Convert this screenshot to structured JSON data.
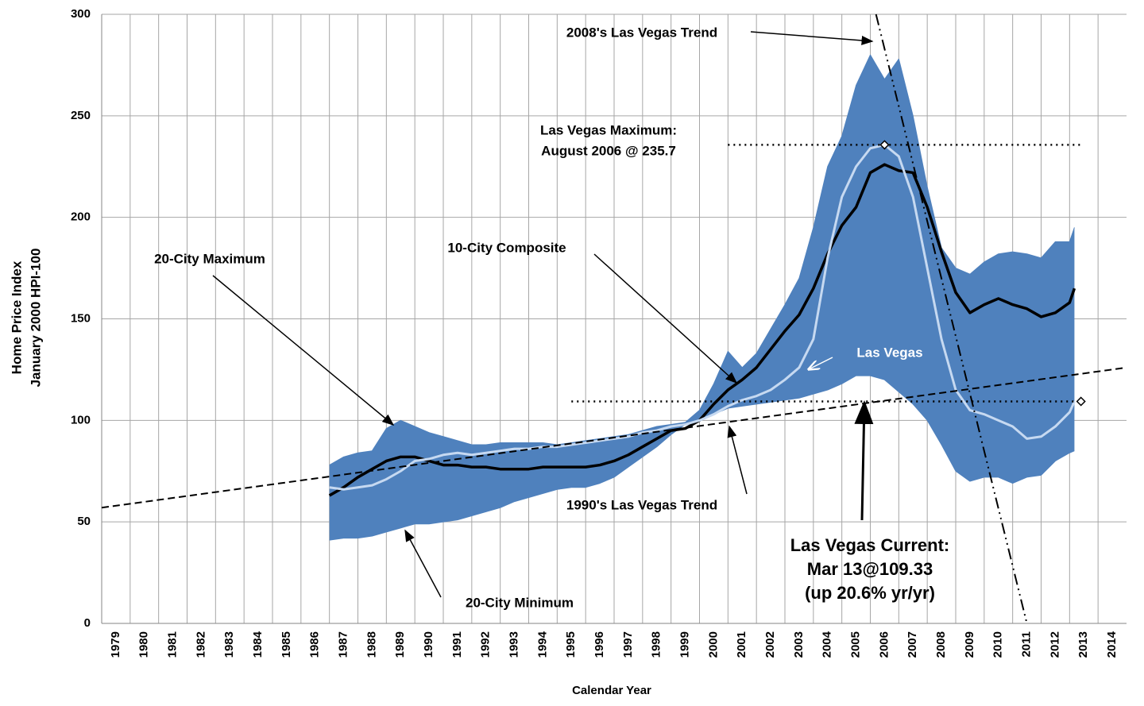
{
  "chart_data": {
    "type": "line",
    "y_title": [
      "Home Price Index",
      "January 2000 HPI-100"
    ],
    "x_title": "Calendar Year",
    "xlim": [
      1979,
      2015
    ],
    "xticks": [
      1979,
      1980,
      1981,
      1982,
      1983,
      1984,
      1985,
      1986,
      1987,
      1988,
      1989,
      1990,
      1991,
      1992,
      1993,
      1994,
      1995,
      1996,
      1997,
      1998,
      1999,
      2000,
      2001,
      2002,
      2003,
      2004,
      2005,
      2006,
      2007,
      2008,
      2009,
      2010,
      2011,
      2012,
      2013,
      2014
    ],
    "ylim": [
      0,
      300
    ],
    "yticks": [
      0,
      50,
      100,
      150,
      200,
      250,
      300
    ],
    "grid": true,
    "band": {
      "series": [
        0,
        1
      ],
      "color": "#4f81bd"
    },
    "x": [
      1987,
      1987.5,
      1988,
      1988.5,
      1989,
      1989.5,
      1990,
      1990.5,
      1991,
      1991.5,
      1992,
      1992.5,
      1993,
      1993.5,
      1994,
      1994.5,
      1995,
      1995.5,
      1996,
      1996.5,
      1997,
      1997.5,
      1998,
      1998.5,
      1999,
      1999.5,
      2000,
      2000.5,
      2001,
      2001.5,
      2002,
      2002.5,
      2003,
      2003.5,
      2004,
      2004.5,
      2005,
      2005.5,
      2006,
      2006.5,
      2007,
      2007.5,
      2008,
      2008.5,
      2009,
      2009.5,
      2010,
      2010.5,
      2011,
      2011.5,
      2012,
      2012.5,
      2013,
      2013.17
    ],
    "series": [
      {
        "name": "20-City Maximum",
        "color": "#4f81bd",
        "dash": "solid",
        "width": 1,
        "values": [
          78,
          82,
          84,
          85,
          96,
          100,
          97,
          94,
          92,
          90,
          88,
          88,
          89,
          89,
          89,
          89,
          88,
          89,
          90,
          91,
          92,
          93,
          95,
          97,
          98,
          99,
          105,
          118,
          134,
          126,
          133,
          145,
          157,
          170,
          195,
          225,
          240,
          265,
          280,
          268,
          278,
          250,
          215,
          185,
          175,
          172,
          178,
          182,
          183,
          182,
          180,
          188,
          188,
          195
        ]
      },
      {
        "name": "20-City Minimum",
        "color": "#4f81bd",
        "dash": "solid",
        "width": 1,
        "values": [
          41,
          42,
          42,
          43,
          45,
          47,
          49,
          49,
          50,
          51,
          53,
          55,
          57,
          60,
          62,
          64,
          66,
          67,
          67,
          69,
          72,
          77,
          82,
          87,
          93,
          98,
          100,
          103,
          106,
          107,
          108,
          109,
          110,
          111,
          113,
          115,
          118,
          122,
          122,
          120,
          114,
          108,
          100,
          88,
          75,
          70,
          72,
          72,
          69,
          72,
          73,
          80,
          84,
          85
        ]
      },
      {
        "name": "10-City Composite",
        "color": "#000000",
        "dash": "solid",
        "width": 3.5,
        "values": [
          63,
          67,
          72,
          76,
          80,
          82,
          82,
          80,
          78,
          78,
          77,
          77,
          76,
          76,
          76,
          77,
          77,
          77,
          77,
          78,
          80,
          83,
          87,
          91,
          95,
          96,
          100,
          108,
          115,
          120,
          126,
          135,
          144,
          152,
          165,
          182,
          196,
          205,
          222,
          226,
          223,
          222,
          205,
          183,
          163,
          153,
          157,
          160,
          157,
          155,
          151,
          153,
          158,
          165
        ]
      },
      {
        "name": "Las Vegas",
        "color": "#c6d9f1",
        "dash": "solid",
        "width": 3,
        "values": [
          67,
          66,
          67,
          68,
          71,
          75,
          80,
          81,
          83,
          84,
          83,
          84,
          85,
          86,
          86,
          87,
          87,
          88,
          89,
          90,
          91,
          92,
          94,
          95,
          97,
          98,
          100,
          103,
          107,
          110,
          112,
          115,
          120,
          126,
          140,
          180,
          210,
          225,
          234,
          235.7,
          230,
          210,
          175,
          140,
          115,
          105,
          103,
          100,
          97,
          91,
          92,
          97,
          104,
          109.33
        ]
      },
      {
        "name": "1990's Las Vegas Trend",
        "color": "#000000",
        "dash": "dashed",
        "width": 2,
        "x": [
          1979,
          2015
        ],
        "values": [
          57,
          126
        ]
      },
      {
        "name": "2008's Las Vegas Trend",
        "color": "#000000",
        "dash": "dashdot",
        "width": 2,
        "x": [
          2006.2,
          2011.5
        ],
        "values": [
          300,
          0
        ]
      }
    ],
    "reference_lines": [
      {
        "label": [
          "Las Vegas Maximum:",
          "August 2006 @ 235.7"
        ],
        "value": 235.7,
        "xrange": [
          2001,
          2013.4
        ]
      },
      {
        "label": [
          "Las Vegas Current:",
          "Mar 13@109.33",
          "(up 20.6% yr/yr)"
        ],
        "value": 109.33,
        "xrange": [
          1995.5,
          2013.4
        ]
      }
    ]
  }
}
